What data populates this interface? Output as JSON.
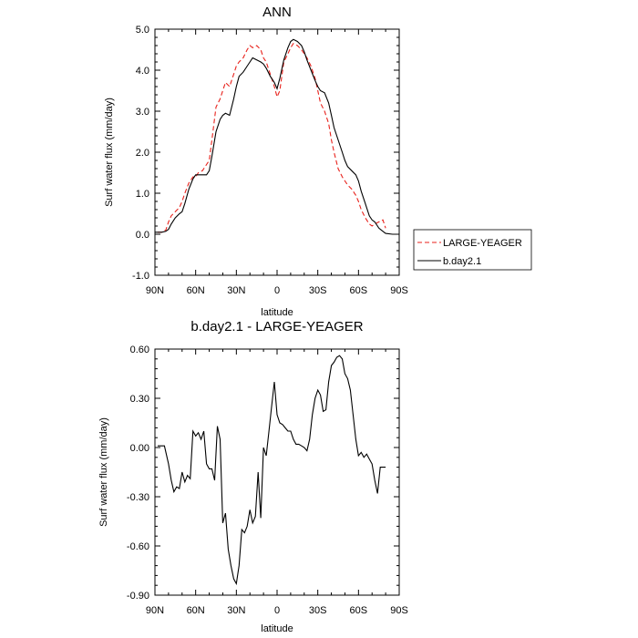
{
  "chart_data": [
    {
      "type": "line",
      "title": "ANN",
      "xlabel": "latitude",
      "ylabel": "Surf water flux (mm/day)",
      "xlim": [
        -90,
        90
      ],
      "ylim": [
        -1.0,
        5.0
      ],
      "xticks": [
        -90,
        -60,
        -30,
        0,
        30,
        60,
        90
      ],
      "xtick_labels": [
        "90N",
        "60N",
        "30N",
        "0",
        "30S",
        "60S",
        "90S"
      ],
      "yticks": [
        -1.0,
        0.0,
        1.0,
        2.0,
        3.0,
        4.0,
        5.0
      ],
      "ytick_labels": [
        "-1.0",
        "0.0",
        "1.0",
        "2.0",
        "3.0",
        "4.0",
        "5.0"
      ],
      "grid": false,
      "legend": "right",
      "series": [
        {
          "name": "LARGE-YEAGER",
          "color": "#e8211b",
          "dash": true,
          "x": [
            -88,
            -85,
            -82,
            -80,
            -78,
            -75,
            -72,
            -70,
            -68,
            -65,
            -62,
            -60,
            -58,
            -55,
            -52,
            -50,
            -48,
            -45,
            -42,
            -40,
            -38,
            -35,
            -32,
            -30,
            -28,
            -25,
            -22,
            -20,
            -18,
            -15,
            -12,
            -10,
            -8,
            -5,
            -2,
            0,
            2,
            5,
            8,
            10,
            12,
            15,
            18,
            20,
            22,
            25,
            28,
            30,
            32,
            35,
            38,
            40,
            42,
            45,
            48,
            50,
            52,
            55,
            58,
            60,
            62,
            65,
            68,
            70,
            72,
            75,
            78,
            80
          ],
          "y": [
            0.05,
            0.05,
            0.1,
            0.3,
            0.45,
            0.55,
            0.65,
            0.8,
            1.0,
            1.25,
            1.4,
            1.4,
            1.5,
            1.55,
            1.7,
            1.8,
            2.3,
            3.1,
            3.3,
            3.5,
            3.7,
            3.6,
            3.9,
            4.1,
            4.2,
            4.3,
            4.5,
            4.6,
            4.55,
            4.6,
            4.5,
            4.3,
            4.2,
            3.9,
            3.6,
            3.35,
            3.5,
            4.2,
            4.4,
            4.55,
            4.65,
            4.6,
            4.5,
            4.4,
            4.3,
            4.1,
            3.8,
            3.5,
            3.2,
            3.0,
            2.7,
            2.3,
            2.0,
            1.6,
            1.4,
            1.3,
            1.2,
            1.1,
            0.95,
            0.8,
            0.6,
            0.4,
            0.25,
            0.2,
            0.25,
            0.3,
            0.35,
            0.15
          ]
        },
        {
          "name": "b.day2.1",
          "color": "#000000",
          "dash": false,
          "x": [
            -90,
            -88,
            -85,
            -82,
            -80,
            -78,
            -75,
            -72,
            -70,
            -68,
            -65,
            -62,
            -60,
            -58,
            -55,
            -52,
            -50,
            -48,
            -45,
            -42,
            -40,
            -38,
            -35,
            -32,
            -30,
            -28,
            -25,
            -22,
            -20,
            -18,
            -15,
            -12,
            -10,
            -8,
            -5,
            -2,
            0,
            2,
            5,
            8,
            10,
            12,
            15,
            18,
            20,
            22,
            25,
            28,
            30,
            32,
            35,
            38,
            40,
            42,
            45,
            48,
            50,
            52,
            55,
            58,
            60,
            62,
            65,
            68,
            70,
            72,
            75,
            78,
            80,
            85,
            90
          ],
          "y": [
            0.05,
            0.05,
            0.05,
            0.07,
            0.12,
            0.25,
            0.4,
            0.5,
            0.55,
            0.75,
            1.1,
            1.35,
            1.45,
            1.45,
            1.45,
            1.45,
            1.55,
            1.9,
            2.5,
            2.8,
            2.9,
            2.95,
            2.9,
            3.3,
            3.6,
            3.85,
            3.95,
            4.1,
            4.2,
            4.3,
            4.25,
            4.2,
            4.15,
            4.05,
            3.85,
            3.7,
            3.55,
            3.8,
            4.25,
            4.55,
            4.7,
            4.75,
            4.7,
            4.6,
            4.45,
            4.25,
            4.0,
            3.75,
            3.6,
            3.5,
            3.45,
            3.2,
            2.9,
            2.6,
            2.3,
            2.0,
            1.8,
            1.65,
            1.55,
            1.45,
            1.3,
            1.05,
            0.75,
            0.45,
            0.35,
            0.3,
            0.15,
            0.07,
            0.02,
            0.0,
            0.0
          ]
        }
      ]
    },
    {
      "type": "line",
      "title": "b.day2.1 - LARGE-YEAGER",
      "xlabel": "latitude",
      "ylabel": "Surf water flux (mm/day)",
      "xlim": [
        -90,
        90
      ],
      "ylim": [
        -0.9,
        0.6
      ],
      "xticks": [
        -90,
        -60,
        -30,
        0,
        30,
        60,
        90
      ],
      "xtick_labels": [
        "90N",
        "60N",
        "30N",
        "0",
        "30S",
        "60S",
        "90S"
      ],
      "yticks": [
        -0.9,
        -0.6,
        -0.3,
        0.0,
        0.3,
        0.6
      ],
      "ytick_labels": [
        "-0.90",
        "-0.60",
        "-0.30",
        "0.00",
        "0.30",
        "0.60"
      ],
      "grid": false,
      "series": [
        {
          "color": "#000000",
          "dash": false,
          "x": [
            -88,
            -85,
            -83,
            -80,
            -78,
            -76,
            -74,
            -72,
            -70,
            -68,
            -66,
            -64,
            -62,
            -60,
            -58,
            -56,
            -54,
            -52,
            -50,
            -48,
            -46,
            -44,
            -42,
            -40,
            -38,
            -36,
            -34,
            -32,
            -30,
            -28,
            -26,
            -24,
            -22,
            -20,
            -18,
            -16,
            -14,
            -12,
            -10,
            -8,
            -6,
            -4,
            -2,
            0,
            2,
            4,
            6,
            8,
            10,
            12,
            14,
            16,
            18,
            20,
            22,
            24,
            26,
            28,
            30,
            32,
            34,
            36,
            38,
            40,
            42,
            44,
            46,
            48,
            50,
            52,
            54,
            56,
            58,
            60,
            62,
            64,
            66,
            68,
            70,
            72,
            74,
            76,
            78,
            80
          ],
          "y": [
            0.01,
            0.01,
            0.01,
            -0.1,
            -0.2,
            -0.27,
            -0.24,
            -0.25,
            -0.15,
            -0.21,
            -0.17,
            -0.19,
            0.1,
            0.07,
            0.09,
            0.05,
            0.1,
            -0.1,
            -0.13,
            -0.13,
            -0.2,
            0.13,
            0.05,
            -0.46,
            -0.4,
            -0.62,
            -0.72,
            -0.8,
            -0.83,
            -0.72,
            -0.5,
            -0.52,
            -0.48,
            -0.38,
            -0.46,
            -0.42,
            -0.15,
            -0.43,
            0.0,
            -0.05,
            0.1,
            0.25,
            0.4,
            0.2,
            0.15,
            0.14,
            0.12,
            0.1,
            0.1,
            0.05,
            0.02,
            0.02,
            0.01,
            0.0,
            -0.02,
            0.05,
            0.2,
            0.3,
            0.35,
            0.32,
            0.22,
            0.23,
            0.4,
            0.5,
            0.52,
            0.55,
            0.56,
            0.54,
            0.45,
            0.42,
            0.35,
            0.2,
            0.05,
            -0.05,
            -0.03,
            -0.06,
            -0.04,
            -0.07,
            -0.1,
            -0.2,
            -0.28,
            -0.12,
            -0.12,
            -0.12
          ]
        }
      ]
    }
  ]
}
